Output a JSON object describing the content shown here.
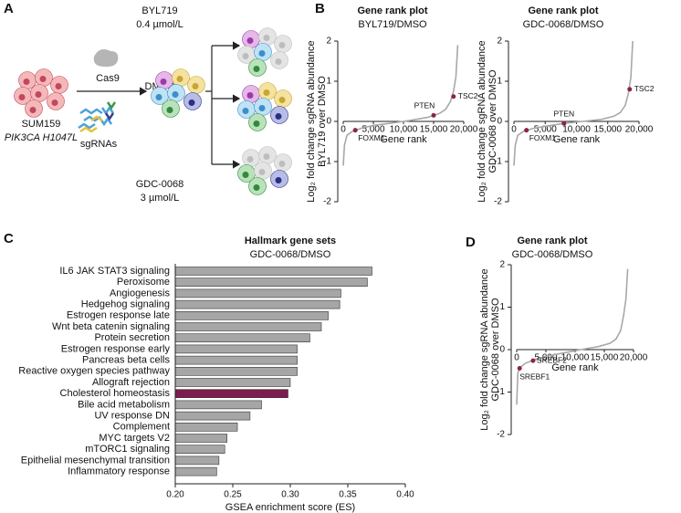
{
  "panels": [
    "A",
    "B",
    "C",
    "D"
  ],
  "diagram": {
    "cas9": "Cas9",
    "cell_line": "SUM159",
    "mutation": "PIK3CA H1047L",
    "sgrnas": "sgRNAs",
    "arms": [
      {
        "drug": "BYL719",
        "dose": "0.4 µmol/L"
      },
      {
        "drug": "DMSO"
      },
      {
        "drug": "GDC-0068",
        "dose": "3 µmol/L"
      }
    ]
  },
  "chart_data": [
    {
      "type": "line",
      "title": "Gene rank plot",
      "subtitle": "BYL719/DMSO",
      "x_label": "Gene rank",
      "y_label": [
        "Log₂ fold change sgRNA abundance",
        "BYL719 over DMSO"
      ],
      "x": [
        0,
        200,
        600,
        1500,
        3000,
        5000,
        8000,
        11000,
        14000,
        16000,
        17000,
        17800,
        18300,
        18700,
        19000
      ],
      "values": [
        -1.1,
        -0.6,
        -0.35,
        -0.25,
        -0.17,
        -0.1,
        -0.04,
        0.02,
        0.1,
        0.2,
        0.3,
        0.5,
        0.75,
        1.1,
        1.9
      ],
      "color": "#a8a8a8",
      "xlim": [
        0,
        20000
      ],
      "xticks": [
        0,
        {
          "value": 5000,
          "label": "5,000"
        },
        {
          "value": 10000,
          "label": "10,000"
        },
        {
          "value": 15000,
          "label": "15,000"
        },
        {
          "value": 20000,
          "label": "20,000"
        }
      ],
      "ylim": [
        -2,
        2
      ],
      "yticks": [
        -2,
        -1,
        0,
        1,
        2
      ],
      "annotation_color": "#8b2252",
      "annotations": [
        {
          "text": "FOXM1",
          "x": 2000,
          "y": -0.22
        },
        {
          "text": "PTEN",
          "x": 15000,
          "y": 0.15
        },
        {
          "text": "TSC2",
          "x": 18300,
          "y": 0.62
        }
      ]
    },
    {
      "type": "line",
      "title": "Gene rank plot",
      "subtitle": "GDC-0068/DMSO",
      "x_label": "Gene rank",
      "y_label": [
        "Log₂ fold change sgRNA abundance",
        "GDC-0068 over DMSO"
      ],
      "x": [
        0,
        200,
        600,
        1500,
        3000,
        5000,
        8000,
        11000,
        14000,
        16000,
        17000,
        17800,
        18300,
        18700,
        19000
      ],
      "values": [
        -1.1,
        -0.6,
        -0.35,
        -0.25,
        -0.18,
        -0.12,
        -0.05,
        0.0,
        0.05,
        0.13,
        0.22,
        0.4,
        0.7,
        1.1,
        2.0
      ],
      "color": "#a8a8a8",
      "xlim": [
        0,
        20000
      ],
      "xticks": [
        0,
        {
          "value": 5000,
          "label": "5,000"
        },
        {
          "value": 10000,
          "label": "10,000"
        },
        {
          "value": 15000,
          "label": "15,000"
        },
        {
          "value": 20000,
          "label": "20,000"
        }
      ],
      "ylim": [
        -2,
        2
      ],
      "yticks": [
        -2,
        -1,
        0,
        1,
        2
      ],
      "annotation_color": "#8b2252",
      "annotations": [
        {
          "text": "FOXM1",
          "x": 2000,
          "y": -0.22
        },
        {
          "text": "PTEN",
          "x": 8000,
          "y": -0.05
        },
        {
          "text": "TSC2",
          "x": 18500,
          "y": 0.8
        }
      ]
    },
    {
      "type": "hbar",
      "title": "Hallmark gene sets",
      "subtitle": "GDC-0068/DMSO",
      "x_label": "GSEA enrichment score (ES)",
      "categories": [
        "IL6 JAK STAT3 signaling",
        "Peroxisome",
        "Angiogenesis",
        "Hedgehog signaling",
        "Estrogen response late",
        "Wnt beta catenin signaling",
        "Protein secretion",
        "Estrogen response early",
        "Pancreas beta cells",
        "Reactive oxygen species pathway",
        "Allograft rejection",
        "Cholesterol homeostasis",
        "Bile acid metabolism",
        "UV response DN",
        "Complement",
        "MYC targets V2",
        "mTORC1 signaling",
        "Epithelial mesenchymal transition",
        "Inflammatory response"
      ],
      "values": [
        0.371,
        0.367,
        0.344,
        0.343,
        0.333,
        0.327,
        0.317,
        0.306,
        0.306,
        0.306,
        0.3,
        0.298,
        0.275,
        0.265,
        0.254,
        0.245,
        0.243,
        0.238,
        0.236
      ],
      "color": "#a6a6a6",
      "colors": [
        "#a6a6a6",
        "#a6a6a6",
        "#a6a6a6",
        "#a6a6a6",
        "#a6a6a6",
        "#a6a6a6",
        "#a6a6a6",
        "#a6a6a6",
        "#a6a6a6",
        "#a6a6a6",
        "#a6a6a6",
        "#7b1d4d",
        "#a6a6a6",
        "#a6a6a6",
        "#a6a6a6",
        "#a6a6a6",
        "#a6a6a6",
        "#a6a6a6",
        "#a6a6a6"
      ],
      "xlim": [
        0.2,
        0.4
      ],
      "xticks": [
        {
          "value": 0.2,
          "label": "0.20"
        },
        {
          "value": 0.25,
          "label": "0.25"
        },
        {
          "value": 0.3,
          "label": "0.30"
        },
        {
          "value": 0.35,
          "label": "0.35"
        },
        {
          "value": 0.4,
          "label": "0.40"
        }
      ]
    },
    {
      "type": "line",
      "title": "Gene rank plot",
      "subtitle": "GDC-0068/DMSO",
      "x_label": "Gene rank",
      "y_label": [
        "Log₂ fold change sgRNA abundance",
        "GDC-0068 over DMSO"
      ],
      "x": [
        0,
        200,
        600,
        1500,
        3000,
        5000,
        8000,
        11000,
        14000,
        16000,
        17000,
        17800,
        18300,
        18700,
        19000
      ],
      "values": [
        -1.3,
        -0.55,
        -0.42,
        -0.32,
        -0.24,
        -0.16,
        -0.08,
        0.0,
        0.07,
        0.15,
        0.25,
        0.45,
        0.8,
        1.2,
        1.9
      ],
      "color": "#a8a8a8",
      "xlim": [
        0,
        20000
      ],
      "xticks": [
        0,
        {
          "value": 5000,
          "label": "5,000"
        },
        {
          "value": 10000,
          "label": "10,000"
        },
        {
          "value": 15000,
          "label": "15,000"
        },
        {
          "value": 20000,
          "label": "20,000"
        }
      ],
      "ylim": [
        -2,
        2
      ],
      "yticks": [
        -2,
        -1,
        0,
        1,
        2
      ],
      "annotation_color": "#8b2252",
      "annotations": [
        {
          "text": "SREBF2",
          "x": 2800,
          "y": -0.26
        },
        {
          "text": "SREBF1",
          "x": 500,
          "y": -0.44
        }
      ]
    }
  ]
}
